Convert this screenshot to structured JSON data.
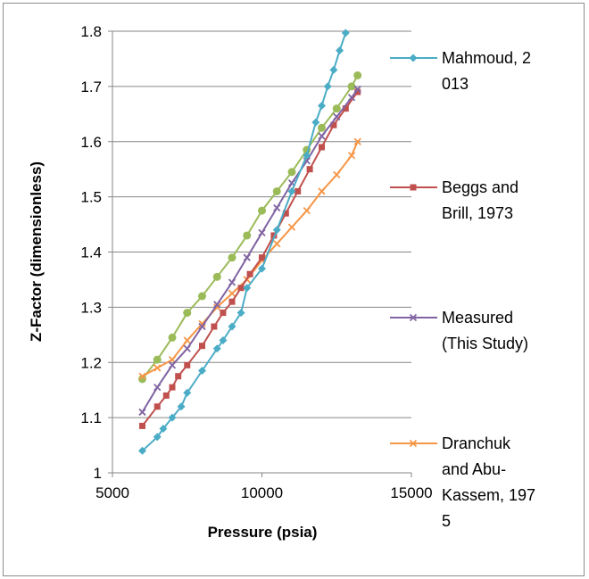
{
  "chart_data": {
    "type": "line",
    "xlabel": "Pressure (psia)",
    "ylabel": "Z-Factor (dimensionless)",
    "xlim": [
      5000,
      15000
    ],
    "ylim": [
      1,
      1.8
    ],
    "x_ticks": [
      "5000",
      "10000",
      "15000"
    ],
    "y_ticks": [
      "1",
      "1.1",
      "1.2",
      "1.3",
      "1.4",
      "1.5",
      "1.6",
      "1.7",
      "1.8"
    ],
    "grid": "horizontal",
    "legend_position": "right",
    "series": [
      {
        "name": "Mahmoud, 2013",
        "legend_lines": [
          "Mahmoud, 2",
          "013"
        ],
        "color": "#4BACC6",
        "marker": "diamond",
        "x": [
          6000,
          6500,
          6700,
          7000,
          7300,
          7500,
          8000,
          8500,
          8700,
          9000,
          9300,
          9500,
          10000,
          10500,
          11000,
          11500,
          11800,
          12000,
          12200,
          12400,
          12600,
          12800
        ],
        "y": [
          1.04,
          1.065,
          1.08,
          1.1,
          1.12,
          1.145,
          1.185,
          1.225,
          1.24,
          1.265,
          1.29,
          1.335,
          1.37,
          1.44,
          1.51,
          1.575,
          1.635,
          1.665,
          1.7,
          1.73,
          1.765,
          1.797
        ]
      },
      {
        "name": "Beggs and Brill, 1973",
        "legend_lines": [
          "Beggs and",
          "Brill, 1973"
        ],
        "color": "#C0504D",
        "marker": "square",
        "x": [
          6000,
          6500,
          6800,
          7000,
          7200,
          7500,
          8000,
          8400,
          8700,
          9000,
          9300,
          9600,
          10000,
          10400,
          10800,
          11200,
          11600,
          12000,
          12400,
          12800,
          13200
        ],
        "y": [
          1.085,
          1.12,
          1.14,
          1.155,
          1.175,
          1.195,
          1.23,
          1.265,
          1.29,
          1.31,
          1.335,
          1.36,
          1.39,
          1.43,
          1.47,
          1.51,
          1.55,
          1.59,
          1.63,
          1.66,
          1.69
        ]
      },
      {
        "name": "Measured (This Study)",
        "legend_lines": [
          "Measured",
          "(This Study)"
        ],
        "color": "#8064A2",
        "marker": "x",
        "x": [
          6000,
          6500,
          7000,
          7500,
          8000,
          8500,
          9000,
          9500,
          10000,
          10500,
          11000,
          11500,
          12000,
          12500,
          13000,
          13200
        ],
        "y": [
          1.11,
          1.155,
          1.195,
          1.225,
          1.265,
          1.305,
          1.345,
          1.39,
          1.435,
          1.48,
          1.525,
          1.565,
          1.61,
          1.645,
          1.68,
          1.695
        ]
      },
      {
        "name": "Dranchuk and Abu-Kassem, 1975",
        "legend_lines": [
          "Dranchuk",
          "and Abu-",
          "Kassem, 197",
          "5"
        ],
        "color": "#F79646",
        "marker": "x",
        "x": [
          6000,
          6500,
          7000,
          7500,
          8000,
          8500,
          9000,
          9500,
          10000,
          10500,
          11000,
          11500,
          12000,
          12500,
          13000,
          13200
        ],
        "y": [
          1.175,
          1.19,
          1.205,
          1.24,
          1.27,
          1.3,
          1.325,
          1.35,
          1.385,
          1.415,
          1.445,
          1.475,
          1.51,
          1.54,
          1.575,
          1.6
        ]
      },
      {
        "color": "#9BBB59",
        "marker": "circle",
        "x": [
          6000,
          6500,
          7000,
          7500,
          8000,
          8500,
          9000,
          9500,
          10000,
          10500,
          11000,
          11500,
          12000,
          12500,
          13000,
          13200
        ],
        "y": [
          1.17,
          1.205,
          1.245,
          1.29,
          1.32,
          1.355,
          1.39,
          1.43,
          1.475,
          1.51,
          1.545,
          1.585,
          1.625,
          1.66,
          1.7,
          1.72
        ]
      }
    ]
  }
}
